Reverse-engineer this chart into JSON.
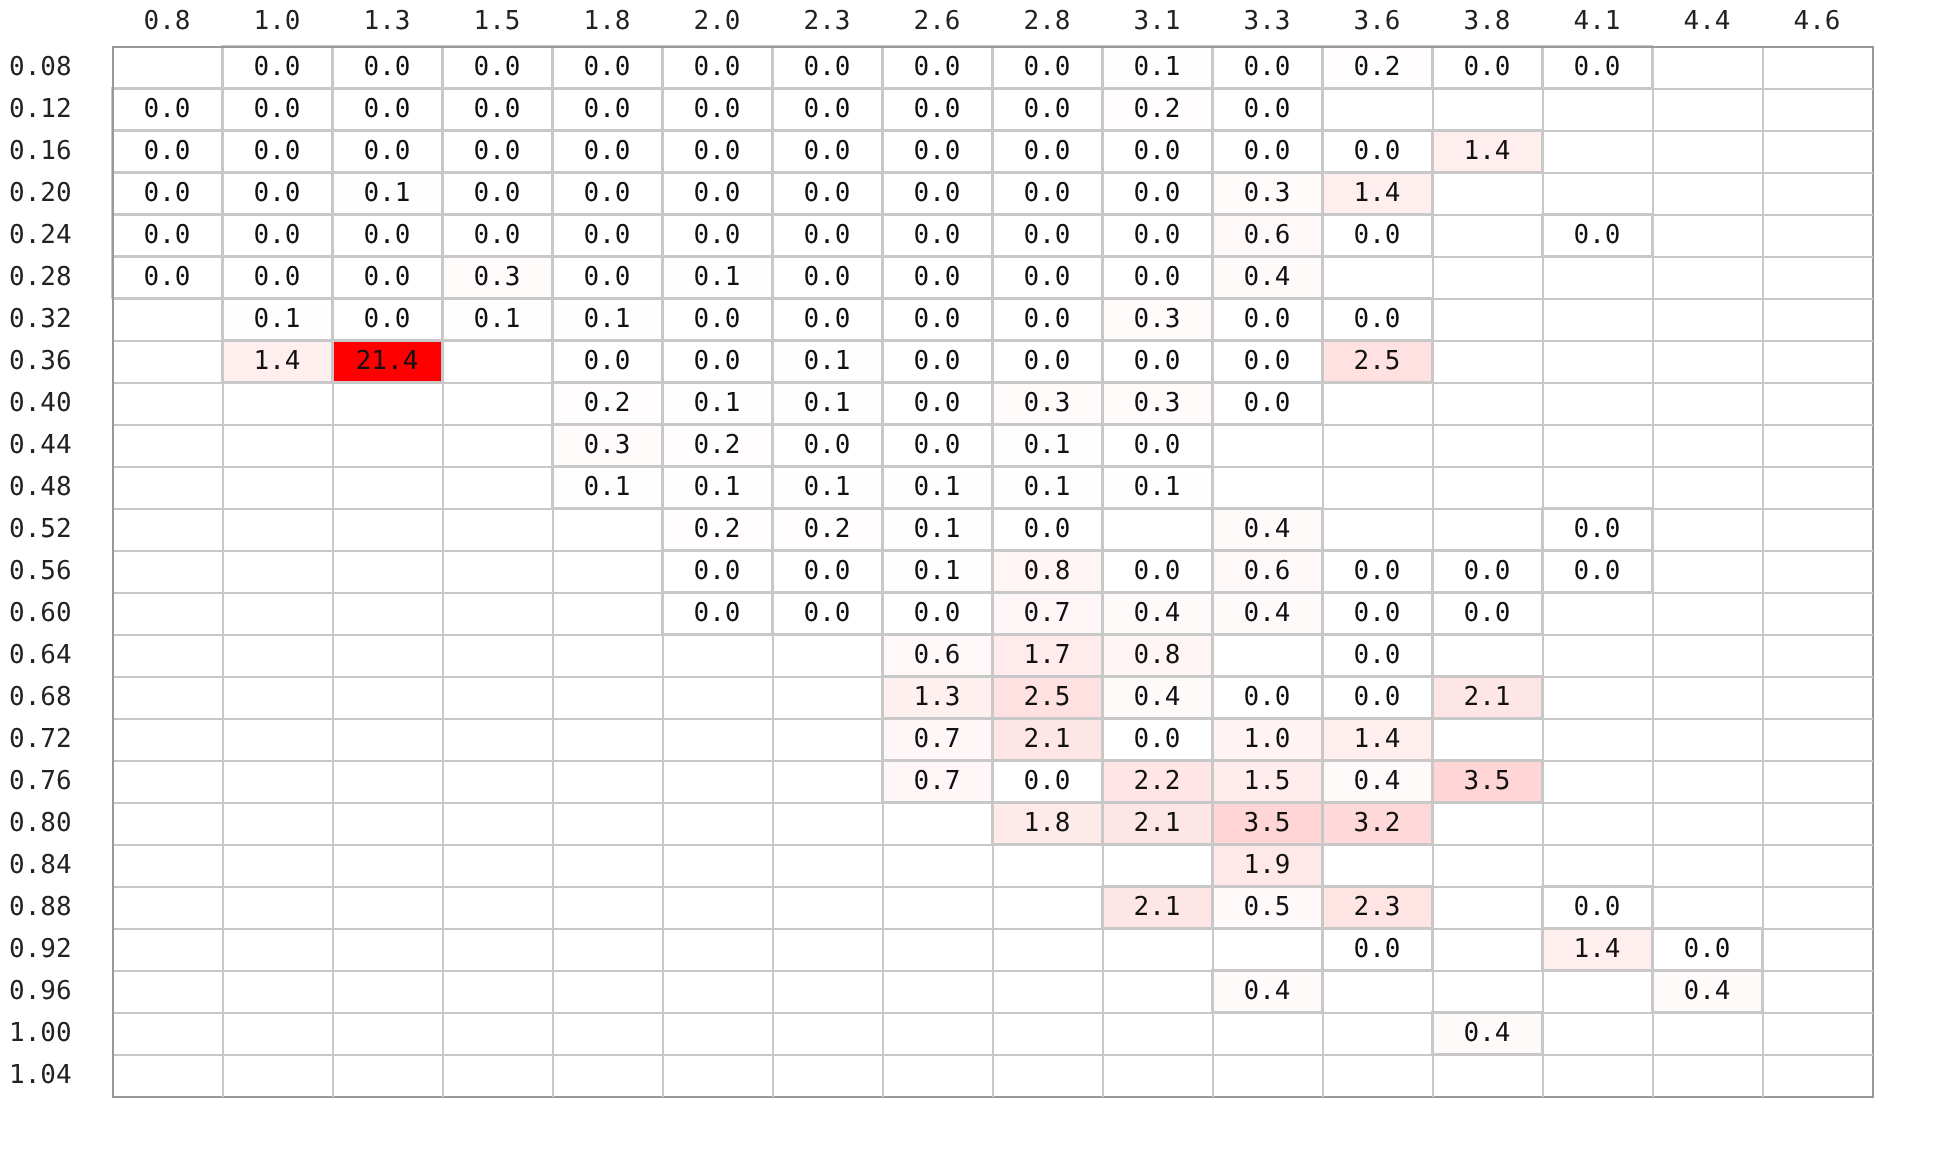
{
  "chart_data": {
    "type": "heatmap",
    "grid": true,
    "data_labels": true,
    "colors": [
      "#ffffff",
      "#ff0000"
    ],
    "categories": [
      "0.8",
      "1.0",
      "1.3",
      "1.5",
      "1.8",
      "2.0",
      "2.3",
      "2.6",
      "2.8",
      "3.1",
      "3.3",
      "3.6",
      "3.8",
      "4.1",
      "4.4",
      "4.6"
    ],
    "y_categories": [
      "0.08",
      "0.12",
      "0.16",
      "0.20",
      "0.24",
      "0.28",
      "0.32",
      "0.36",
      "0.40",
      "0.44",
      "0.48",
      "0.52",
      "0.56",
      "0.60",
      "0.64",
      "0.68",
      "0.72",
      "0.76",
      "0.80",
      "0.84",
      "0.88",
      "0.92",
      "0.96",
      "1.00",
      "1.04"
    ],
    "cells": [
      [
        null,
        0.0,
        0.0,
        0.0,
        0.0,
        0.0,
        0.0,
        0.0,
        0.0,
        0.1,
        0.0,
        0.2,
        0.0,
        0.0,
        null,
        null
      ],
      [
        0.0,
        0.0,
        0.0,
        0.0,
        0.0,
        0.0,
        0.0,
        0.0,
        0.0,
        0.2,
        0.0,
        null,
        null,
        null,
        null,
        null
      ],
      [
        0.0,
        0.0,
        0.0,
        0.0,
        0.0,
        0.0,
        0.0,
        0.0,
        0.0,
        0.0,
        0.0,
        0.0,
        1.4,
        null,
        null,
        null
      ],
      [
        0.0,
        0.0,
        0.1,
        0.0,
        0.0,
        0.0,
        0.0,
        0.0,
        0.0,
        0.0,
        0.3,
        1.4,
        null,
        null,
        null,
        null
      ],
      [
        0.0,
        0.0,
        0.0,
        0.0,
        0.0,
        0.0,
        0.0,
        0.0,
        0.0,
        0.0,
        0.6,
        0.0,
        null,
        0.0,
        null,
        null
      ],
      [
        0.0,
        0.0,
        0.0,
        0.3,
        0.0,
        0.1,
        0.0,
        0.0,
        0.0,
        0.0,
        0.4,
        null,
        null,
        null,
        null,
        null
      ],
      [
        null,
        0.1,
        0.0,
        0.1,
        0.1,
        0.0,
        0.0,
        0.0,
        0.0,
        0.3,
        0.0,
        0.0,
        null,
        null,
        null,
        null
      ],
      [
        null,
        1.4,
        21.4,
        null,
        0.0,
        0.0,
        0.1,
        0.0,
        0.0,
        0.0,
        0.0,
        2.5,
        null,
        null,
        null,
        null
      ],
      [
        null,
        null,
        null,
        null,
        0.2,
        0.1,
        0.1,
        0.0,
        0.3,
        0.3,
        0.0,
        null,
        null,
        null,
        null,
        null
      ],
      [
        null,
        null,
        null,
        null,
        0.3,
        0.2,
        0.0,
        0.0,
        0.1,
        0.0,
        null,
        null,
        null,
        null,
        null,
        null
      ],
      [
        null,
        null,
        null,
        null,
        0.1,
        0.1,
        0.1,
        0.1,
        0.1,
        0.1,
        null,
        null,
        null,
        null,
        null,
        null
      ],
      [
        null,
        null,
        null,
        null,
        null,
        0.2,
        0.2,
        0.1,
        0.0,
        null,
        0.4,
        null,
        null,
        0.0,
        null,
        null
      ],
      [
        null,
        null,
        null,
        null,
        null,
        0.0,
        0.0,
        0.1,
        0.8,
        0.0,
        0.6,
        0.0,
        0.0,
        0.0,
        null,
        null
      ],
      [
        null,
        null,
        null,
        null,
        null,
        0.0,
        0.0,
        0.0,
        0.7,
        0.4,
        0.4,
        0.0,
        0.0,
        null,
        null,
        null
      ],
      [
        null,
        null,
        null,
        null,
        null,
        null,
        null,
        0.6,
        1.7,
        0.8,
        null,
        0.0,
        null,
        null,
        null,
        null
      ],
      [
        null,
        null,
        null,
        null,
        null,
        null,
        null,
        1.3,
        2.5,
        0.4,
        0.0,
        0.0,
        2.1,
        null,
        null,
        null
      ],
      [
        null,
        null,
        null,
        null,
        null,
        null,
        null,
        0.7,
        2.1,
        0.0,
        1.0,
        1.4,
        null,
        null,
        null,
        null
      ],
      [
        null,
        null,
        null,
        null,
        null,
        null,
        null,
        0.7,
        0.0,
        2.2,
        1.5,
        0.4,
        3.5,
        null,
        null,
        null
      ],
      [
        null,
        null,
        null,
        null,
        null,
        null,
        null,
        null,
        1.8,
        2.1,
        3.5,
        3.2,
        null,
        null,
        null,
        null
      ],
      [
        null,
        null,
        null,
        null,
        null,
        null,
        null,
        null,
        null,
        null,
        1.9,
        null,
        null,
        null,
        null,
        null
      ],
      [
        null,
        null,
        null,
        null,
        null,
        null,
        null,
        null,
        null,
        2.1,
        0.5,
        2.3,
        null,
        0.0,
        null,
        null
      ],
      [
        null,
        null,
        null,
        null,
        null,
        null,
        null,
        null,
        null,
        null,
        null,
        0.0,
        null,
        1.4,
        0.0,
        null
      ],
      [
        null,
        null,
        null,
        null,
        null,
        null,
        null,
        null,
        null,
        null,
        0.4,
        null,
        null,
        null,
        0.4,
        null
      ],
      [
        null,
        null,
        null,
        null,
        null,
        null,
        null,
        null,
        null,
        null,
        null,
        null,
        0.4,
        null,
        null,
        null
      ],
      [
        null,
        null,
        null,
        null,
        null,
        null,
        null,
        null,
        null,
        null,
        null,
        null,
        null,
        null,
        null,
        null
      ]
    ],
    "cell_labels": [
      [
        null,
        "0.0",
        "0.0",
        "0.0",
        "0.0",
        "0.0",
        "0.0",
        "0.0",
        "0.0",
        "0.1",
        "0.0",
        "0.2",
        "0.0",
        "0.0",
        null,
        null
      ],
      [
        "0.0",
        "0.0",
        "0.0",
        "0.0",
        "0.0",
        "0.0",
        "0.0",
        "0.0",
        "0.0",
        "0.2",
        "0.0",
        null,
        null,
        null,
        null,
        null
      ],
      [
        "0.0",
        "0.0",
        "0.0",
        "0.0",
        "0.0",
        "0.0",
        "0.0",
        "0.0",
        "0.0",
        "0.0",
        "0.0",
        "0.0",
        "1.4",
        null,
        null,
        null
      ],
      [
        "0.0",
        "0.0",
        "0.1",
        "0.0",
        "0.0",
        "0.0",
        "0.0",
        "0.0",
        "0.0",
        "0.0",
        "0.3",
        "1.4",
        null,
        null,
        null,
        null
      ],
      [
        "0.0",
        "0.0",
        "0.0",
        "0.0",
        "0.0",
        "0.0",
        "0.0",
        "0.0",
        "0.0",
        "0.0",
        "0.6",
        "0.0",
        null,
        "0.0",
        null,
        null
      ],
      [
        "0.0",
        "0.0",
        "0.0",
        "0.3",
        "0.0",
        "0.1",
        "0.0",
        "0.0",
        "0.0",
        "0.0",
        "0.4",
        null,
        null,
        null,
        null,
        null
      ],
      [
        null,
        "0.1",
        "0.0",
        "0.1",
        "0.1",
        "0.0",
        "0.0",
        "0.0",
        "0.0",
        "0.3",
        "0.0",
        "0.0",
        null,
        null,
        null,
        null
      ],
      [
        null,
        "1.4",
        "21.4",
        null,
        "0.0",
        "0.0",
        "0.1",
        "0.0",
        "0.0",
        "0.0",
        "0.0",
        "2.5",
        null,
        null,
        null,
        null
      ],
      [
        null,
        null,
        null,
        null,
        "0.2",
        "0.1",
        "0.1",
        "0.0",
        "0.3",
        "0.3",
        "0.0",
        null,
        null,
        null,
        null,
        null
      ],
      [
        null,
        null,
        null,
        null,
        "0.3",
        "0.2",
        "0.0",
        "0.0",
        "0.1",
        "0.0",
        null,
        null,
        null,
        null,
        null,
        null
      ],
      [
        null,
        null,
        null,
        null,
        "0.1",
        "0.1",
        "0.1",
        "0.1",
        "0.1",
        "0.1",
        null,
        null,
        null,
        null,
        null,
        null
      ],
      [
        null,
        null,
        null,
        null,
        null,
        "0.2",
        "0.2",
        "0.1",
        "0.0",
        null,
        "0.4",
        null,
        null,
        "0.0",
        null,
        null
      ],
      [
        null,
        null,
        null,
        null,
        null,
        "0.0",
        "0.0",
        "0.1",
        "0.8",
        "0.0",
        "0.6",
        "0.0",
        "0.0",
        "0.0",
        null,
        null
      ],
      [
        null,
        null,
        null,
        null,
        null,
        "0.0",
        "0.0",
        "0.0",
        "0.7",
        "0.4",
        "0.4",
        "0.0",
        "0.0",
        null,
        null,
        null
      ],
      [
        null,
        null,
        null,
        null,
        null,
        null,
        null,
        "0.6",
        "1.7",
        "0.8",
        null,
        "0.0",
        null,
        null,
        null,
        null
      ],
      [
        null,
        null,
        null,
        null,
        null,
        null,
        null,
        "1.3",
        "2.5",
        "0.4",
        "0.0",
        "0.0",
        "2.1",
        null,
        null,
        null
      ],
      [
        null,
        null,
        null,
        null,
        null,
        null,
        null,
        "0.7",
        "2.1",
        "0.0",
        "1.0",
        "1.4",
        null,
        null,
        null,
        null
      ],
      [
        null,
        null,
        null,
        null,
        null,
        null,
        null,
        "0.7",
        "0.0",
        "2.2",
        "1.5",
        "0.4",
        "3.5",
        null,
        null,
        null
      ],
      [
        null,
        null,
        null,
        null,
        null,
        null,
        null,
        null,
        "1.8",
        "2.1",
        "3.5",
        "3.2",
        null,
        null,
        null,
        null
      ],
      [
        null,
        null,
        null,
        null,
        null,
        null,
        null,
        null,
        null,
        null,
        "1.9",
        null,
        null,
        null,
        null,
        null
      ],
      [
        null,
        null,
        null,
        null,
        null,
        null,
        null,
        null,
        null,
        "2.1",
        "0.5",
        "2.3",
        null,
        "0.0",
        null,
        null
      ],
      [
        null,
        null,
        null,
        null,
        null,
        null,
        null,
        null,
        null,
        null,
        null,
        "0.0",
        null,
        "1.4",
        "0.0",
        null
      ],
      [
        null,
        null,
        null,
        null,
        null,
        null,
        null,
        null,
        null,
        null,
        "0.4",
        null,
        null,
        null,
        "0.4",
        null
      ],
      [
        null,
        null,
        null,
        null,
        null,
        null,
        null,
        null,
        null,
        null,
        null,
        null,
        "0.4",
        null,
        null,
        null
      ],
      [
        null,
        null,
        null,
        null,
        null,
        null,
        null,
        null,
        null,
        null,
        null,
        null,
        null,
        null,
        null,
        null
      ]
    ]
  }
}
